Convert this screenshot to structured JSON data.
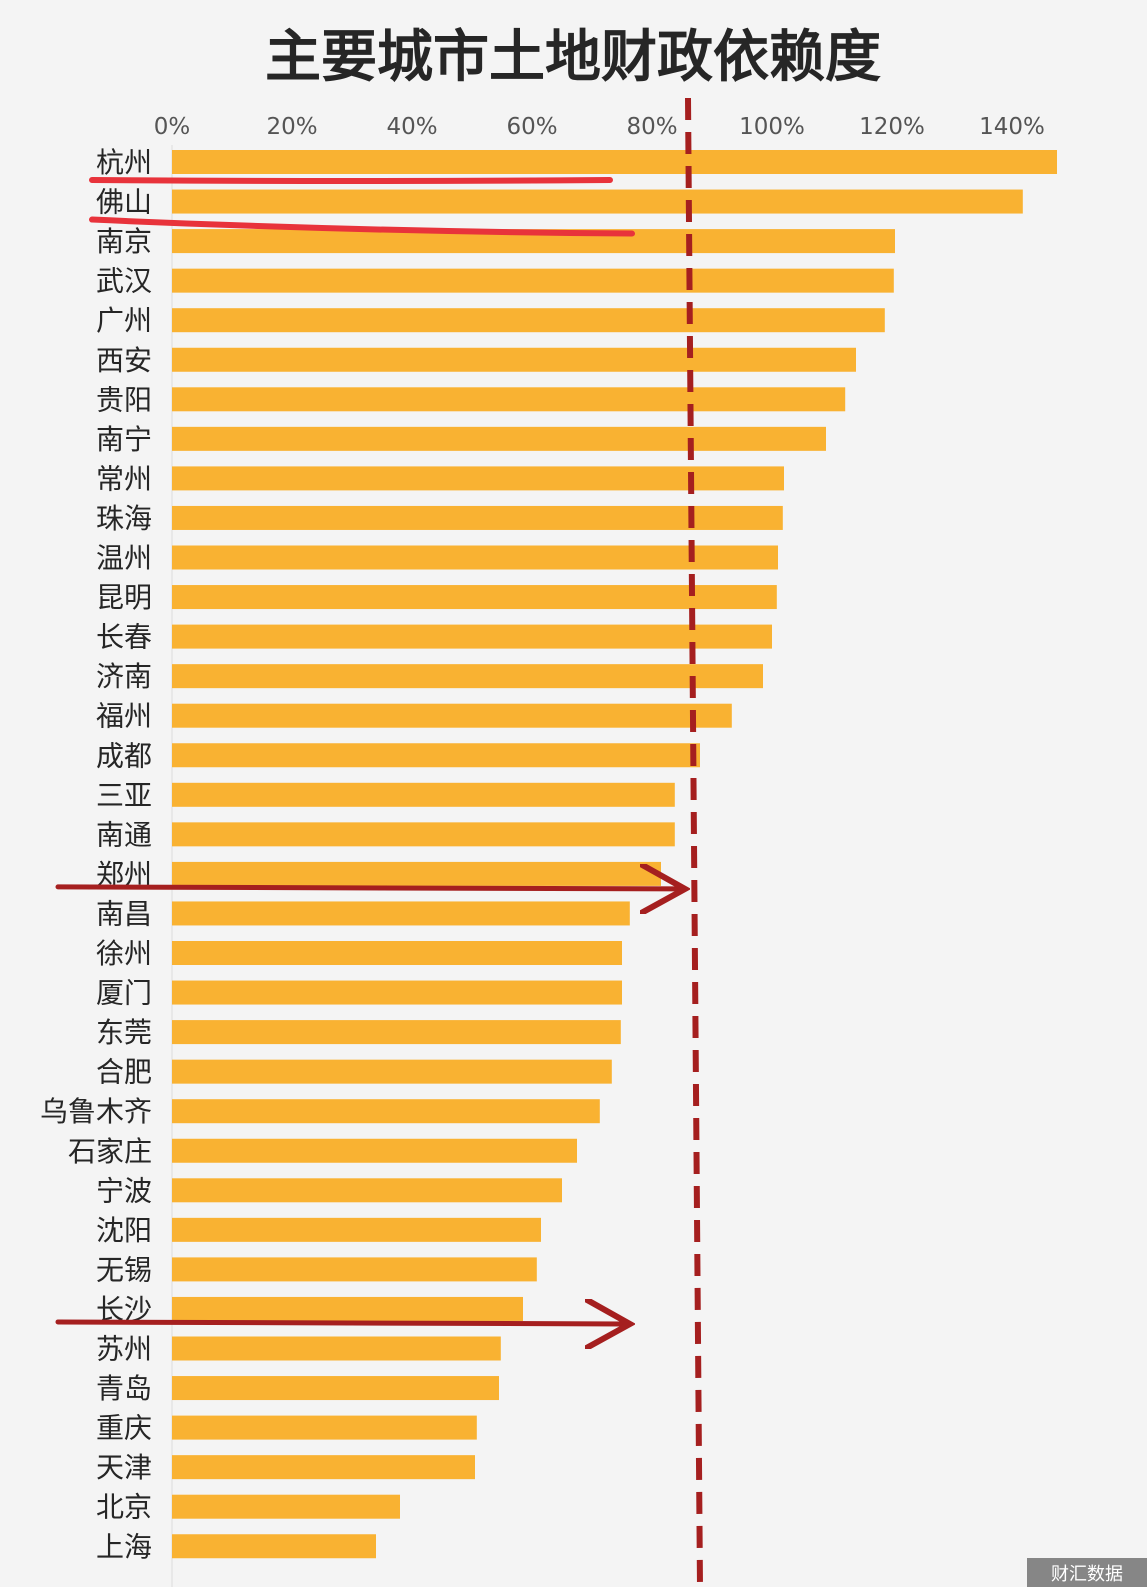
{
  "chart_data": {
    "type": "bar",
    "orientation": "horizontal",
    "title": "主要城市土地财政依赖度",
    "x_ticks": [
      "0%",
      "20%",
      "40%",
      "60%",
      "80%",
      "100%",
      "120%",
      "140%"
    ],
    "xlim": [
      0,
      148
    ],
    "categories": [
      "杭州",
      "佛山",
      "南京",
      "武汉",
      "广州",
      "西安",
      "贵阳",
      "南宁",
      "常州",
      "珠海",
      "温州",
      "昆明",
      "长春",
      "济南",
      "福州",
      "成都",
      "三亚",
      "南通",
      "郑州",
      "南昌",
      "徐州",
      "厦门",
      "东莞",
      "合肥",
      "乌鲁木齐",
      "石家庄",
      "宁波",
      "沈阳",
      "无锡",
      "长沙",
      "苏州",
      "青岛",
      "重庆",
      "天津",
      "北京",
      "上海"
    ],
    "values": [
      147.5,
      141.8,
      120.5,
      120.3,
      118.8,
      114.0,
      112.2,
      109.0,
      102.0,
      101.8,
      101.0,
      100.8,
      100.0,
      98.5,
      93.3,
      88.0,
      83.8,
      83.8,
      81.5,
      76.3,
      75.0,
      75.0,
      74.8,
      73.3,
      71.3,
      67.5,
      65.0,
      61.5,
      60.8,
      58.5,
      54.8,
      54.5,
      50.8,
      50.5,
      38.0,
      34.0
    ],
    "bar_color": "#f9b232",
    "grid": false,
    "legend": "none",
    "reference_line": {
      "value": 86,
      "style": "dashed",
      "color": "#a51f1f"
    },
    "annotations": [
      {
        "type": "underline",
        "target": "杭州",
        "color": "#e8333b"
      },
      {
        "type": "underline",
        "target": "佛山",
        "color": "#e8333b"
      },
      {
        "type": "arrow",
        "target": "郑州",
        "color": "#a51f1f"
      },
      {
        "type": "arrow",
        "target": "长沙",
        "color": "#a51f1f"
      }
    ]
  },
  "watermark": "财汇数据"
}
